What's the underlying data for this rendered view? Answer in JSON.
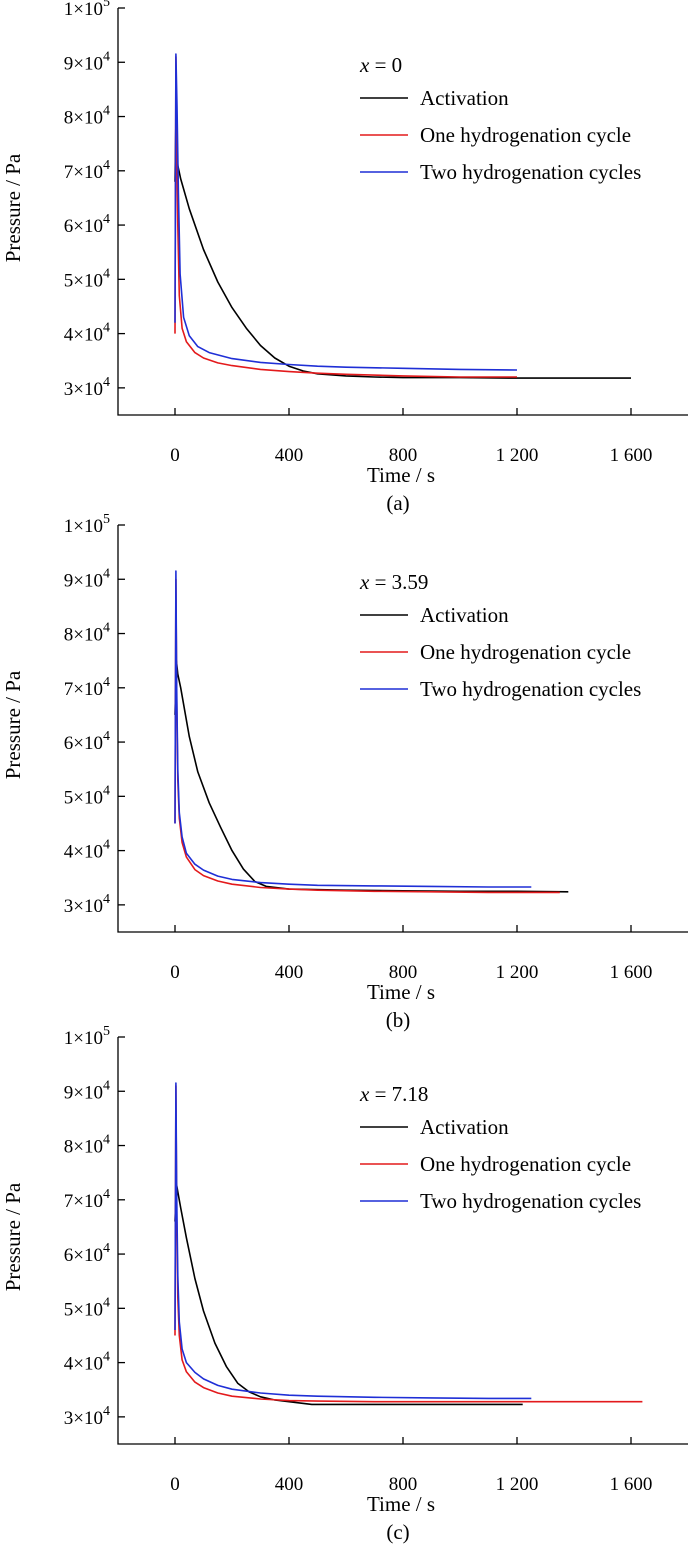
{
  "colors": {
    "Activation": "#000000",
    "One hydrogenation cycle": "#e31a1c",
    "Two hydrogenation cycles": "#1f2fd6"
  },
  "chart_data": [
    {
      "type": "line",
      "panel": "(a)",
      "annotation_var": "x",
      "annotation_val": " = 0",
      "xlabel": "Time / s",
      "ylabel": "Pressure / Pa",
      "xlim": [
        -200,
        1800
      ],
      "ylim": [
        25000,
        100000
      ],
      "xticks": [
        0,
        400,
        800,
        1200,
        1600
      ],
      "xtick_labels": [
        "0",
        "400",
        "800",
        "1 200",
        "1 600"
      ],
      "yticks": [
        30000,
        40000,
        50000,
        60000,
        70000,
        80000,
        90000,
        100000
      ],
      "ytick_mant": [
        "3",
        "4",
        "5",
        "6",
        "7",
        "8",
        "9",
        "1"
      ],
      "ytick_sup": [
        "4",
        "4",
        "4",
        "4",
        "4",
        "4",
        "4",
        "5"
      ],
      "legend": [
        "Activation",
        "One hydrogenation cycle",
        "Two hydrogenation cycles"
      ],
      "series": [
        {
          "name": "Activation",
          "x": [
            0,
            3,
            6,
            10,
            20,
            50,
            100,
            150,
            200,
            250,
            300,
            350,
            400,
            450,
            500,
            600,
            700,
            800,
            900,
            1000,
            1200,
            1400,
            1600
          ],
          "y": [
            68000,
            79000,
            75000,
            71000,
            68500,
            63000,
            55500,
            49500,
            44800,
            41000,
            37800,
            35500,
            34000,
            33100,
            32600,
            32200,
            32000,
            31900,
            31900,
            31900,
            31800,
            31800,
            31800
          ]
        },
        {
          "name": "One hydrogenation cycle",
          "x": [
            0,
            3,
            6,
            10,
            15,
            25,
            40,
            70,
            100,
            150,
            200,
            300,
            400,
            500,
            600,
            800,
            1000,
            1200
          ],
          "y": [
            40000,
            91000,
            75000,
            60000,
            47000,
            41000,
            38500,
            36500,
            35500,
            34600,
            34100,
            33400,
            33000,
            32700,
            32500,
            32200,
            32000,
            32000
          ]
        },
        {
          "name": "Two hydrogenation cycles",
          "x": [
            0,
            3,
            7,
            12,
            18,
            30,
            50,
            80,
            120,
            200,
            300,
            400,
            500,
            600,
            800,
            1000,
            1200
          ],
          "y": [
            42000,
            91500,
            82000,
            66000,
            51000,
            43000,
            39600,
            37600,
            36500,
            35400,
            34700,
            34300,
            34000,
            33800,
            33600,
            33400,
            33300
          ]
        }
      ]
    },
    {
      "type": "line",
      "panel": "(b)",
      "annotation_var": "x",
      "annotation_val": " = 3.59",
      "xlabel": "Time / s",
      "ylabel": "Pressure / Pa",
      "xlim": [
        -200,
        1800
      ],
      "ylim": [
        25000,
        100000
      ],
      "xticks": [
        0,
        400,
        800,
        1200,
        1600
      ],
      "xtick_labels": [
        "0",
        "400",
        "800",
        "1 200",
        "1 600"
      ],
      "yticks": [
        30000,
        40000,
        50000,
        60000,
        70000,
        80000,
        90000,
        100000
      ],
      "ytick_mant": [
        "3",
        "4",
        "5",
        "6",
        "7",
        "8",
        "9",
        "1"
      ],
      "ytick_sup": [
        "4",
        "4",
        "4",
        "4",
        "4",
        "4",
        "4",
        "5"
      ],
      "legend": [
        "Activation",
        "One hydrogenation cycle",
        "Two hydrogenation cycles"
      ],
      "series": [
        {
          "name": "Activation",
          "x": [
            0,
            5,
            10,
            20,
            50,
            80,
            120,
            160,
            200,
            240,
            280,
            320,
            400,
            600,
            800,
            1000,
            1200,
            1380
          ],
          "y": [
            65000,
            75000,
            72500,
            70000,
            61000,
            54500,
            48800,
            44300,
            40000,
            36600,
            34300,
            33400,
            32900,
            32700,
            32600,
            32500,
            32500,
            32400
          ]
        },
        {
          "name": "One hydrogenation cycle",
          "x": [
            0,
            3,
            6,
            10,
            15,
            25,
            40,
            70,
            100,
            150,
            200,
            300,
            400,
            500,
            700,
            900,
            1100,
            1350
          ],
          "y": [
            45000,
            90000,
            68000,
            53000,
            46000,
            41500,
            38800,
            36500,
            35400,
            34400,
            33800,
            33200,
            32900,
            32700,
            32500,
            32400,
            32300,
            32300
          ]
        },
        {
          "name": "Two hydrogenation cycles",
          "x": [
            0,
            3,
            6,
            10,
            15,
            25,
            40,
            70,
            100,
            150,
            200,
            300,
            400,
            500,
            700,
            900,
            1100,
            1250
          ],
          "y": [
            45000,
            91500,
            70000,
            55000,
            47000,
            42500,
            39500,
            37500,
            36400,
            35300,
            34700,
            34100,
            33800,
            33600,
            33500,
            33400,
            33300,
            33300
          ]
        }
      ]
    },
    {
      "type": "line",
      "panel": "(c)",
      "annotation_var": "x",
      "annotation_val": " = 7.18",
      "xlabel": "Time / s",
      "ylabel": "Pressure / Pa",
      "xlim": [
        -200,
        1800
      ],
      "ylim": [
        25000,
        100000
      ],
      "xticks": [
        0,
        400,
        800,
        1200,
        1600
      ],
      "xtick_labels": [
        "0",
        "400",
        "800",
        "1 200",
        "1 600"
      ],
      "yticks": [
        30000,
        40000,
        50000,
        60000,
        70000,
        80000,
        90000,
        100000
      ],
      "ytick_mant": [
        "3",
        "4",
        "5",
        "6",
        "7",
        "8",
        "9",
        "1"
      ],
      "ytick_sup": [
        "4",
        "4",
        "4",
        "4",
        "4",
        "4",
        "4",
        "5"
      ],
      "legend": [
        "Activation",
        "One hydrogenation cycle",
        "Two hydrogenation cycles"
      ],
      "series": [
        {
          "name": "Activation",
          "x": [
            0,
            5,
            10,
            20,
            40,
            70,
            100,
            140,
            180,
            220,
            260,
            300,
            350,
            400,
            480,
            600,
            800,
            1000,
            1220
          ],
          "y": [
            66000,
            73000,
            71500,
            68500,
            63000,
            55500,
            49500,
            43600,
            39300,
            36200,
            34600,
            33700,
            33100,
            32800,
            32300,
            32300,
            32300,
            32300,
            32300
          ]
        },
        {
          "name": "One hydrogenation cycle",
          "x": [
            0,
            3,
            6,
            10,
            15,
            25,
            40,
            70,
            100,
            150,
            200,
            300,
            400,
            500,
            700,
            900,
            1100,
            1300,
            1640
          ],
          "y": [
            45000,
            91000,
            67000,
            52000,
            45000,
            40500,
            38300,
            36400,
            35400,
            34400,
            33800,
            33300,
            33000,
            32900,
            32800,
            32800,
            32800,
            32800,
            32800
          ]
        },
        {
          "name": "Two hydrogenation cycles",
          "x": [
            0,
            3,
            6,
            10,
            15,
            25,
            40,
            70,
            100,
            150,
            200,
            300,
            400,
            500,
            700,
            900,
            1100,
            1250
          ],
          "y": [
            46000,
            91500,
            71000,
            56000,
            47500,
            42500,
            40000,
            38200,
            37000,
            35800,
            35100,
            34400,
            34000,
            33800,
            33600,
            33500,
            33400,
            33400
          ]
        }
      ]
    }
  ]
}
